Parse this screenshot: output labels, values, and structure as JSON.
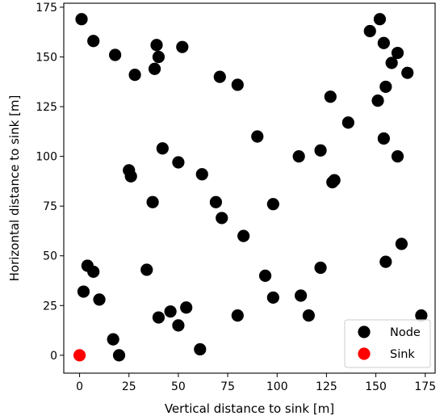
{
  "chart_data": {
    "type": "scatter",
    "xlabel": "Vertical distance to sink [m]",
    "ylabel": "Horizontal distance to sink [m]",
    "xlim": [
      -8,
      180
    ],
    "ylim": [
      -9,
      177
    ],
    "xticks": [
      0,
      25,
      50,
      75,
      100,
      125,
      150,
      175
    ],
    "yticks": [
      0,
      25,
      50,
      75,
      100,
      125,
      150,
      175
    ],
    "xtick_labels": [
      "0",
      "25",
      "50",
      "75",
      "100",
      "125",
      "150",
      "175"
    ],
    "ytick_labels": [
      "0",
      "25",
      "50",
      "75",
      "100",
      "125",
      "150",
      "175"
    ],
    "grid": false,
    "legend_position": "bottom-right",
    "series": [
      {
        "name": "Node",
        "color": "#000000",
        "points": [
          [
            1,
            169
          ],
          [
            7,
            158
          ],
          [
            18,
            151
          ],
          [
            28,
            141
          ],
          [
            39,
            156
          ],
          [
            40,
            150
          ],
          [
            38,
            144
          ],
          [
            52,
            155
          ],
          [
            71,
            140
          ],
          [
            80,
            136
          ],
          [
            147,
            163
          ],
          [
            152,
            169
          ],
          [
            154,
            157
          ],
          [
            161,
            152
          ],
          [
            158,
            147
          ],
          [
            166,
            142
          ],
          [
            127,
            130
          ],
          [
            151,
            128
          ],
          [
            155,
            135
          ],
          [
            136,
            117
          ],
          [
            90,
            110
          ],
          [
            111,
            100
          ],
          [
            122,
            103
          ],
          [
            154,
            109
          ],
          [
            161,
            100
          ],
          [
            42,
            104
          ],
          [
            50,
            97
          ],
          [
            62,
            91
          ],
          [
            25,
            93
          ],
          [
            26,
            90
          ],
          [
            37,
            77
          ],
          [
            69,
            77
          ],
          [
            72,
            69
          ],
          [
            98,
            76
          ],
          [
            128,
            87
          ],
          [
            129,
            88
          ],
          [
            83,
            60
          ],
          [
            163,
            56
          ],
          [
            155,
            47
          ],
          [
            4,
            45
          ],
          [
            7,
            42
          ],
          [
            34,
            43
          ],
          [
            94,
            40
          ],
          [
            122,
            44
          ],
          [
            2,
            32
          ],
          [
            10,
            28
          ],
          [
            98,
            29
          ],
          [
            112,
            30
          ],
          [
            40,
            19
          ],
          [
            46,
            22
          ],
          [
            50,
            15
          ],
          [
            54,
            24
          ],
          [
            80,
            20
          ],
          [
            116,
            20
          ],
          [
            17,
            8
          ],
          [
            20,
            0
          ],
          [
            61,
            3
          ],
          [
            173,
            20
          ]
        ]
      },
      {
        "name": "Sink",
        "color": "#ff0000",
        "points": [
          [
            0,
            0
          ]
        ]
      }
    ],
    "legend": {
      "entries": [
        "Node",
        "Sink"
      ]
    }
  }
}
